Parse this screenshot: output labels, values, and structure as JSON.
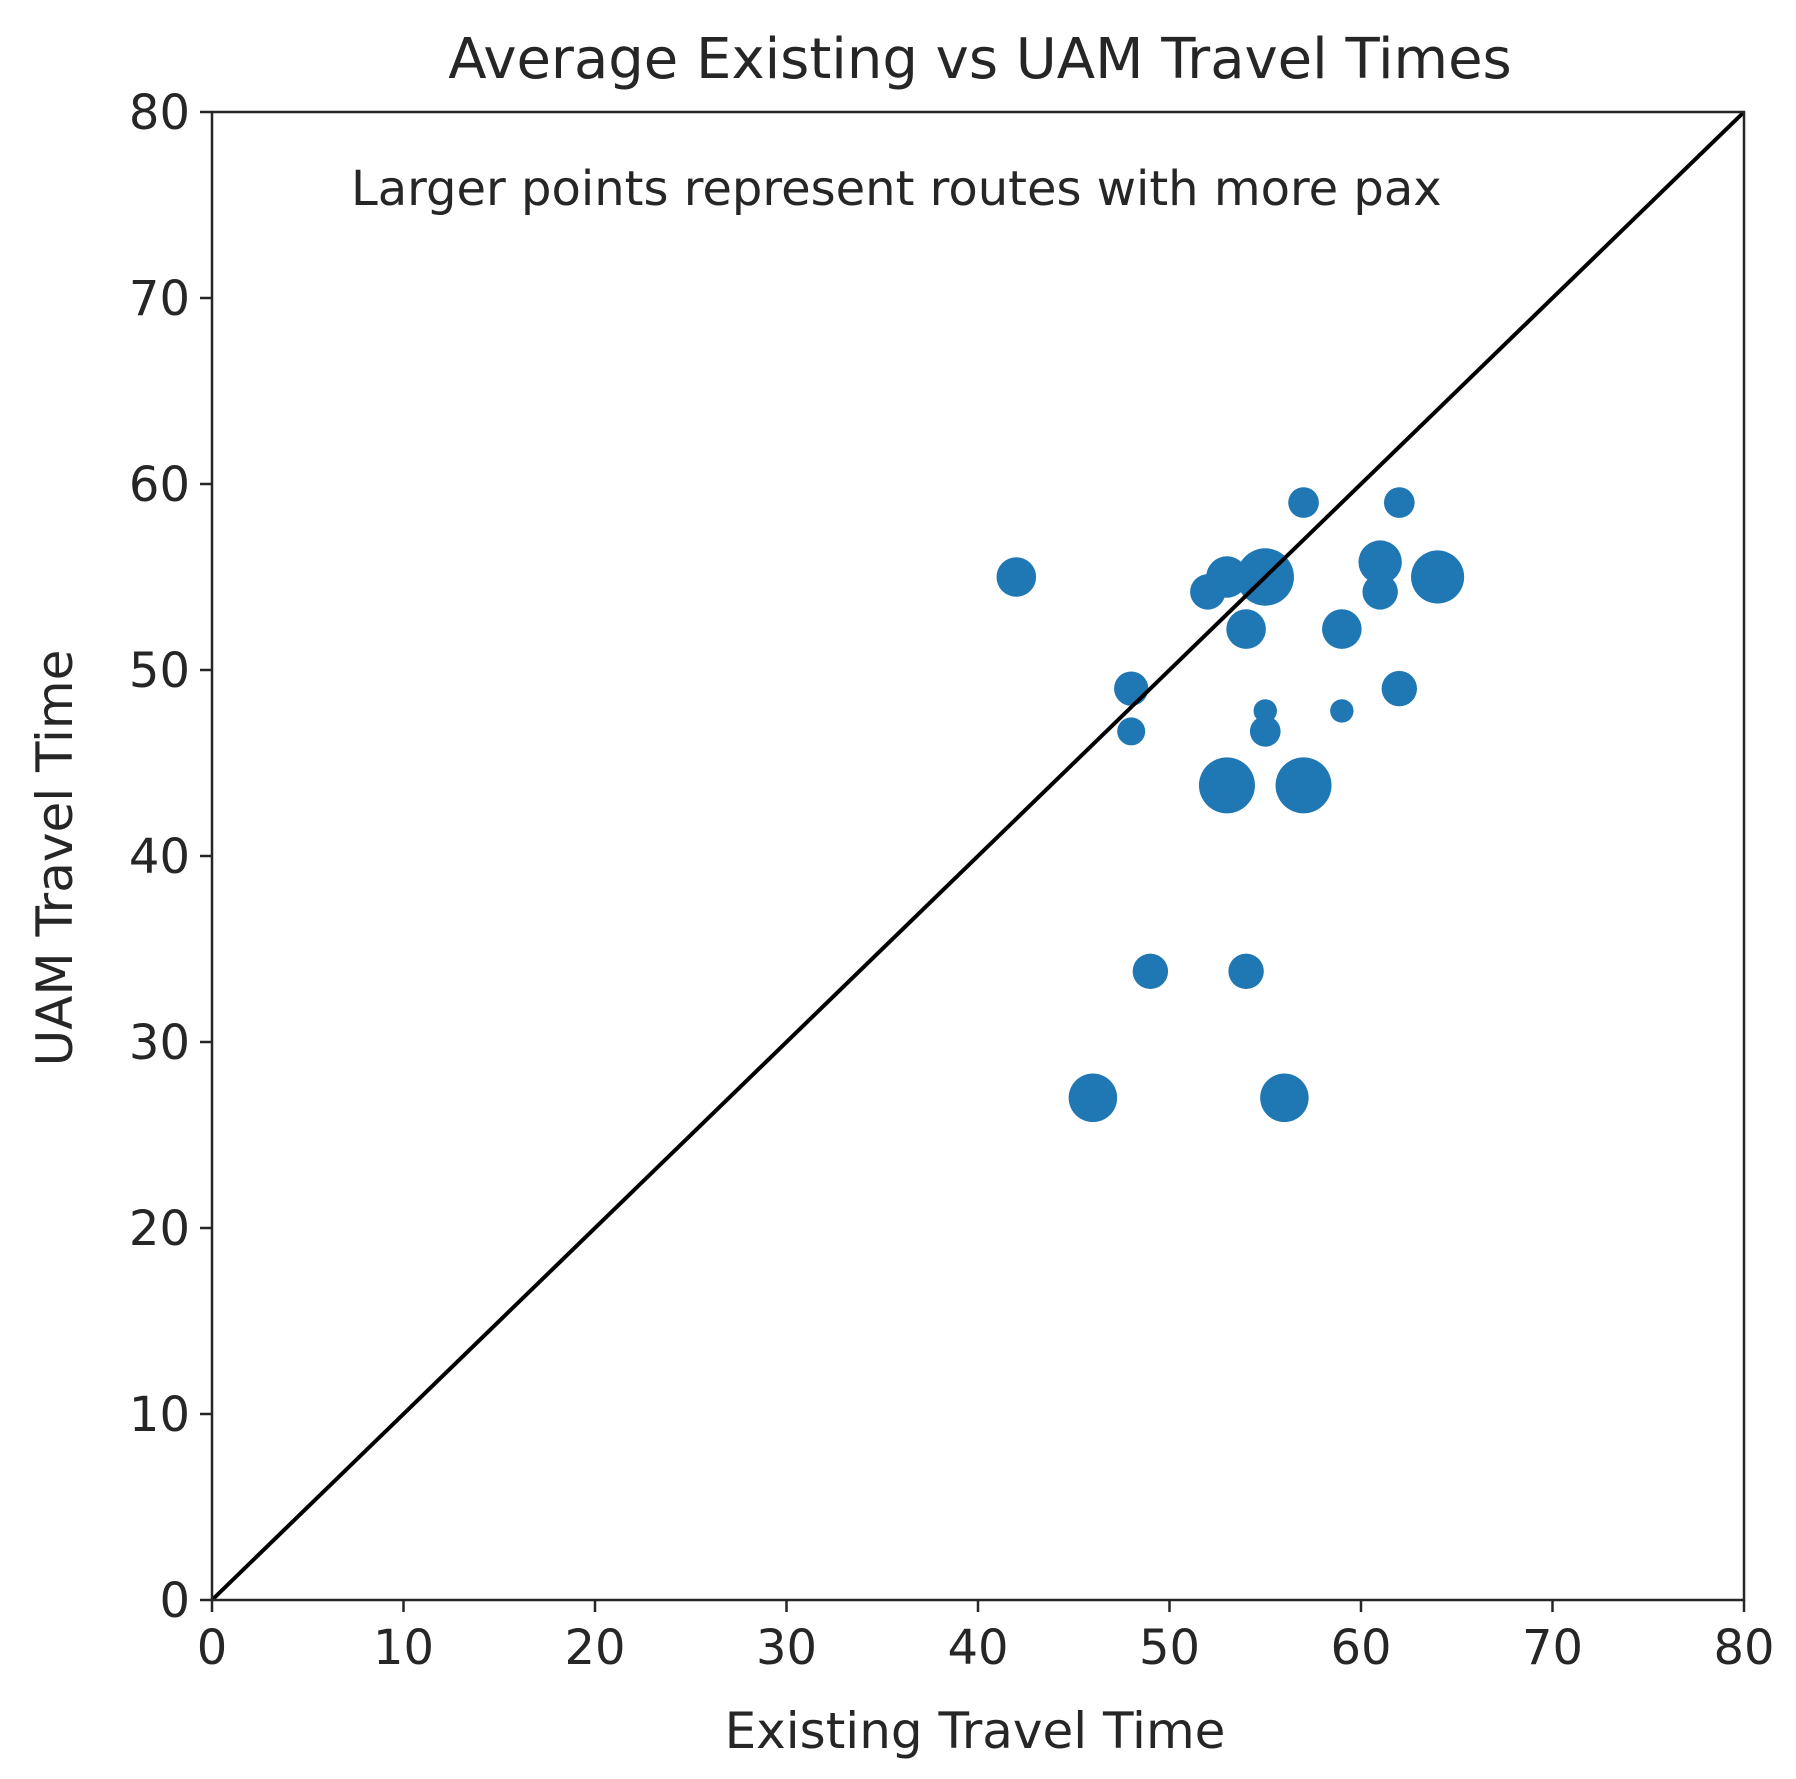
{
  "chart_data": {
    "type": "scatter",
    "title": "Average Existing vs UAM Travel Times",
    "annotation": "Larger points represent routes with more pax",
    "xlabel": "Existing Travel Time",
    "ylabel": "UAM Travel Time",
    "xlim": [
      0,
      80
    ],
    "ylim": [
      0,
      80
    ],
    "x_ticks": [
      0,
      10,
      20,
      30,
      40,
      50,
      60,
      70,
      80
    ],
    "y_ticks": [
      0,
      10,
      20,
      30,
      40,
      50,
      60,
      70,
      80
    ],
    "grid": false,
    "marker_color": "#1f77b4",
    "reference_line": {
      "from": [
        0,
        0
      ],
      "to": [
        80,
        80
      ],
      "color": "#000000"
    },
    "points": [
      {
        "x": 42.0,
        "y": 55.0,
        "size": 2
      },
      {
        "x": 46.0,
        "y": 27.0,
        "size": 3
      },
      {
        "x": 48.0,
        "y": 49.0,
        "size": 1.5
      },
      {
        "x": 48.0,
        "y": 46.7,
        "size": 1
      },
      {
        "x": 49.0,
        "y": 33.8,
        "size": 1.6
      },
      {
        "x": 52.0,
        "y": 54.2,
        "size": 1.6
      },
      {
        "x": 53.0,
        "y": 55.0,
        "size": 2.2
      },
      {
        "x": 53.0,
        "y": 43.8,
        "size": 4
      },
      {
        "x": 54.0,
        "y": 52.2,
        "size": 2
      },
      {
        "x": 54.0,
        "y": 33.8,
        "size": 1.6
      },
      {
        "x": 55.0,
        "y": 55.0,
        "size": 4.2
      },
      {
        "x": 55.0,
        "y": 47.8,
        "size": 0.7
      },
      {
        "x": 55.0,
        "y": 46.7,
        "size": 1.2
      },
      {
        "x": 56.0,
        "y": 27.0,
        "size": 3
      },
      {
        "x": 57.0,
        "y": 59.0,
        "size": 1.2
      },
      {
        "x": 57.0,
        "y": 43.8,
        "size": 4
      },
      {
        "x": 59.0,
        "y": 52.2,
        "size": 2
      },
      {
        "x": 59.0,
        "y": 47.8,
        "size": 0.7
      },
      {
        "x": 61.0,
        "y": 55.8,
        "size": 2.4
      },
      {
        "x": 61.0,
        "y": 54.2,
        "size": 1.6
      },
      {
        "x": 62.0,
        "y": 59.0,
        "size": 1.2
      },
      {
        "x": 62.0,
        "y": 49.0,
        "size": 1.6
      },
      {
        "x": 64.0,
        "y": 55.0,
        "size": 3.6
      }
    ]
  }
}
